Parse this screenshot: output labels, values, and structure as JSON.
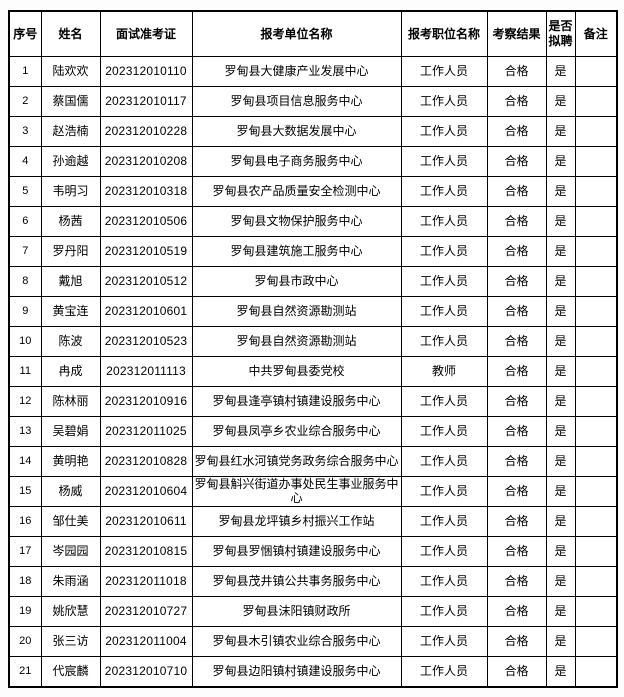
{
  "page": {
    "background_color": "#fdfdfd",
    "border_color": "#000000",
    "text_color": "#000000"
  },
  "table": {
    "headers": [
      "序号",
      "姓名",
      "面试准考证",
      "报考单位名称",
      "报考职位名称",
      "考察结果",
      "是否拟聘",
      "备注"
    ],
    "rows": [
      {
        "no": "1",
        "name": "陆欢欢",
        "ticket": "202312010110",
        "unit": "罗甸县大健康产业发展中心",
        "position": "工作人员",
        "result": "合格",
        "hire": "是",
        "remark": ""
      },
      {
        "no": "2",
        "name": "蔡国儒",
        "ticket": "202312010117",
        "unit": "罗甸县项目信息服务中心",
        "position": "工作人员",
        "result": "合格",
        "hire": "是",
        "remark": ""
      },
      {
        "no": "3",
        "name": "赵浩楠",
        "ticket": "202312010228",
        "unit": "罗甸县大数据发展中心",
        "position": "工作人员",
        "result": "合格",
        "hire": "是",
        "remark": ""
      },
      {
        "no": "4",
        "name": "孙逾越",
        "ticket": "202312010208",
        "unit": "罗甸县电子商务服务中心",
        "position": "工作人员",
        "result": "合格",
        "hire": "是",
        "remark": ""
      },
      {
        "no": "5",
        "name": "韦明习",
        "ticket": "202312010318",
        "unit": "罗甸县农产品质量安全检测中心",
        "position": "工作人员",
        "result": "合格",
        "hire": "是",
        "remark": ""
      },
      {
        "no": "6",
        "name": "杨茜",
        "ticket": "202312010506",
        "unit": "罗甸县文物保护服务中心",
        "position": "工作人员",
        "result": "合格",
        "hire": "是",
        "remark": ""
      },
      {
        "no": "7",
        "name": "罗丹阳",
        "ticket": "202312010519",
        "unit": "罗甸县建筑施工服务中心",
        "position": "工作人员",
        "result": "合格",
        "hire": "是",
        "remark": ""
      },
      {
        "no": "8",
        "name": "戴旭",
        "ticket": "202312010512",
        "unit": "罗甸县市政中心",
        "position": "工作人员",
        "result": "合格",
        "hire": "是",
        "remark": ""
      },
      {
        "no": "9",
        "name": "黄宝连",
        "ticket": "202312010601",
        "unit": "罗甸县自然资源勘测站",
        "position": "工作人员",
        "result": "合格",
        "hire": "是",
        "remark": ""
      },
      {
        "no": "10",
        "name": "陈波",
        "ticket": "202312010523",
        "unit": "罗甸县自然资源勘测站",
        "position": "工作人员",
        "result": "合格",
        "hire": "是",
        "remark": ""
      },
      {
        "no": "11",
        "name": "冉成",
        "ticket": "202312011113",
        "unit": "中共罗甸县委党校",
        "position": "教师",
        "result": "合格",
        "hire": "是",
        "remark": ""
      },
      {
        "no": "12",
        "name": "陈林丽",
        "ticket": "202312010916",
        "unit": "罗甸县逢亭镇村镇建设服务中心",
        "position": "工作人员",
        "result": "合格",
        "hire": "是",
        "remark": ""
      },
      {
        "no": "13",
        "name": "吴碧娟",
        "ticket": "202312011025",
        "unit": "罗甸县凤亭乡农业综合服务中心",
        "position": "工作人员",
        "result": "合格",
        "hire": "是",
        "remark": ""
      },
      {
        "no": "14",
        "name": "黄明艳",
        "ticket": "202312010828",
        "unit": "罗甸县红水河镇党务政务综合服务中心",
        "position": "工作人员",
        "result": "合格",
        "hire": "是",
        "remark": ""
      },
      {
        "no": "15",
        "name": "杨威",
        "ticket": "202312010604",
        "unit": "罗甸县斛兴街道办事处民生事业服务中心",
        "position": "工作人员",
        "result": "合格",
        "hire": "是",
        "remark": ""
      },
      {
        "no": "16",
        "name": "邹仕美",
        "ticket": "202312010611",
        "unit": "罗甸县龙坪镇乡村振兴工作站",
        "position": "工作人员",
        "result": "合格",
        "hire": "是",
        "remark": ""
      },
      {
        "no": "17",
        "name": "岑园园",
        "ticket": "202312010815",
        "unit": "罗甸县罗悃镇村镇建设服务中心",
        "position": "工作人员",
        "result": "合格",
        "hire": "是",
        "remark": ""
      },
      {
        "no": "18",
        "name": "朱雨涵",
        "ticket": "202312011018",
        "unit": "罗甸县茂井镇公共事务服务中心",
        "position": "工作人员",
        "result": "合格",
        "hire": "是",
        "remark": ""
      },
      {
        "no": "19",
        "name": "姚欣慧",
        "ticket": "202312010727",
        "unit": "罗甸县沫阳镇财政所",
        "position": "工作人员",
        "result": "合格",
        "hire": "是",
        "remark": ""
      },
      {
        "no": "20",
        "name": "张三访",
        "ticket": "202312011004",
        "unit": "罗甸县木引镇农业综合服务中心",
        "position": "工作人员",
        "result": "合格",
        "hire": "是",
        "remark": ""
      },
      {
        "no": "21",
        "name": "代宸麟",
        "ticket": "202312010710",
        "unit": "罗甸县边阳镇村镇建设服务中心",
        "position": "工作人员",
        "result": "合格",
        "hire": "是",
        "remark": ""
      }
    ]
  }
}
